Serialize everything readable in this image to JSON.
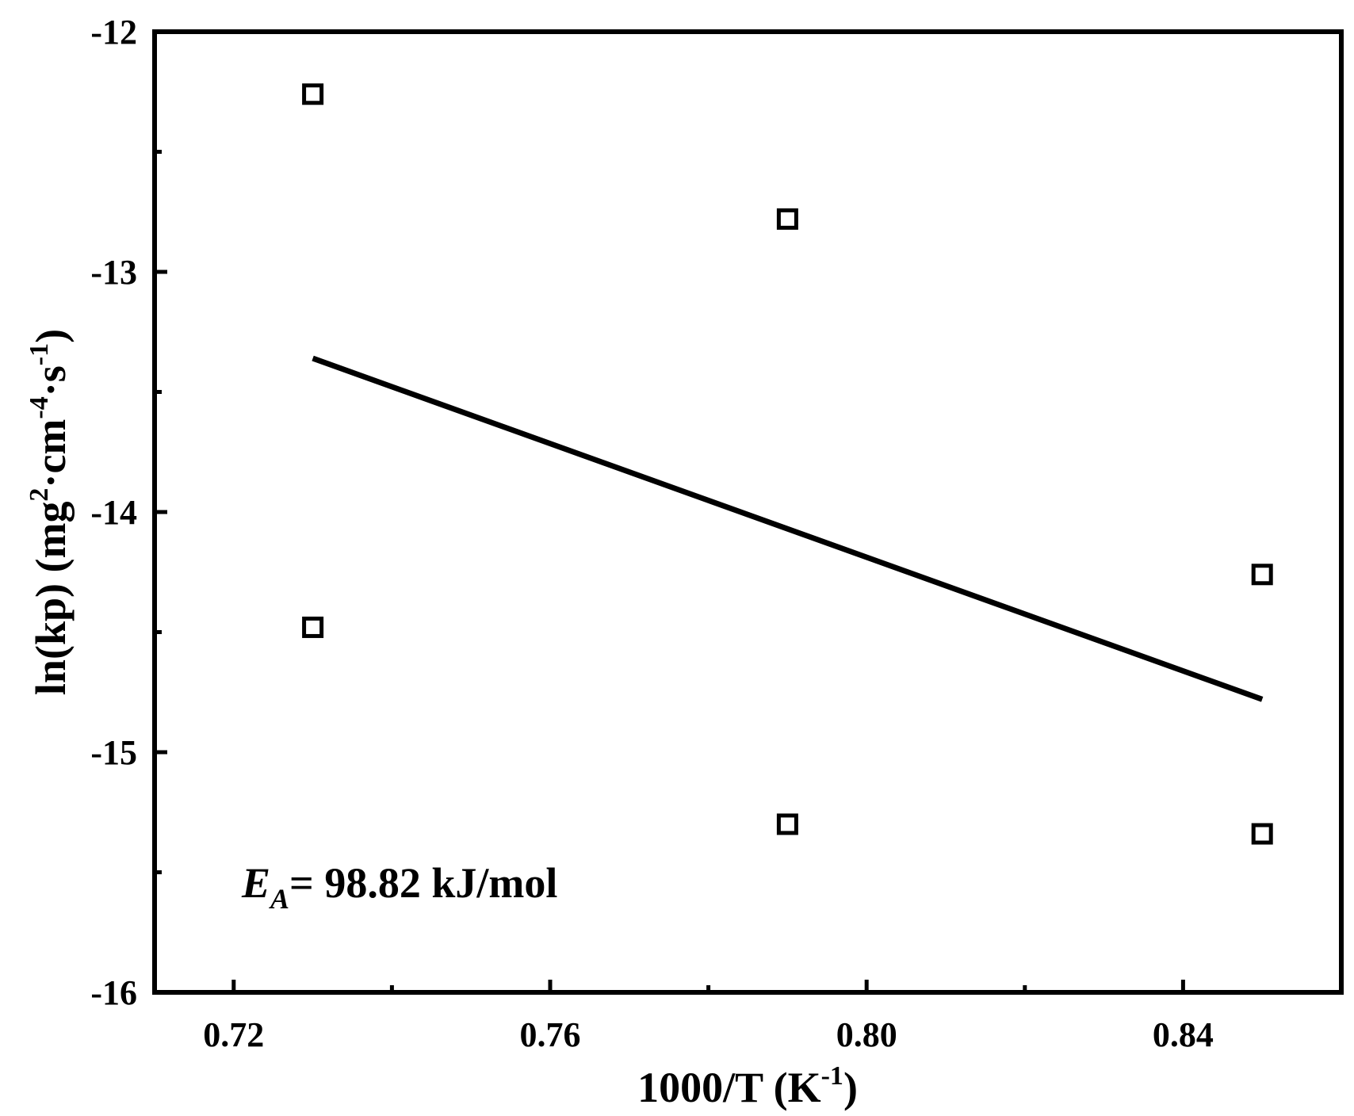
{
  "chart_data": {
    "type": "scatter",
    "title": "",
    "xlabel": {
      "base": "1000/T (K",
      "sup": "-1",
      "close": ")"
    },
    "ylabel": {
      "base": "ln(kp) (mg",
      "sup1": "2",
      "mid": "·cm",
      "sup2": "-4",
      "mid2": "·s",
      "sup3": "-1",
      "close": ")"
    },
    "xlim": [
      0.71,
      0.86
    ],
    "ylim": [
      -16,
      -12
    ],
    "x_major_ticks": [
      0.72,
      0.76,
      0.8,
      0.84
    ],
    "x_tick_labels": [
      "0.72",
      "0.76",
      "0.80",
      "0.84"
    ],
    "x_minor_ticks": [
      0.74,
      0.78,
      0.82
    ],
    "y_major_ticks": [
      -16,
      -15,
      -14,
      -13,
      -12
    ],
    "y_tick_labels": [
      "-16",
      "-15",
      "-14",
      "-13",
      "-12"
    ],
    "y_minor_ticks": [
      -15.5,
      -14.5,
      -13.5,
      -12.5
    ],
    "grid": false,
    "series": [
      {
        "marker": "open-square",
        "color": "#000000",
        "points": [
          {
            "x": 0.73,
            "y": -12.26
          },
          {
            "x": 0.73,
            "y": -14.48
          },
          {
            "x": 0.79,
            "y": -12.78
          },
          {
            "x": 0.79,
            "y": -15.3
          },
          {
            "x": 0.85,
            "y": -14.26
          },
          {
            "x": 0.85,
            "y": -15.34
          }
        ]
      }
    ],
    "fit_line": {
      "color": "#000000",
      "x": [
        0.73,
        0.85
      ],
      "y": [
        -13.36,
        -14.78
      ]
    },
    "annotation": {
      "symbol": "E",
      "sub": "A",
      "text": "= 98.82 kJ/mol"
    }
  }
}
